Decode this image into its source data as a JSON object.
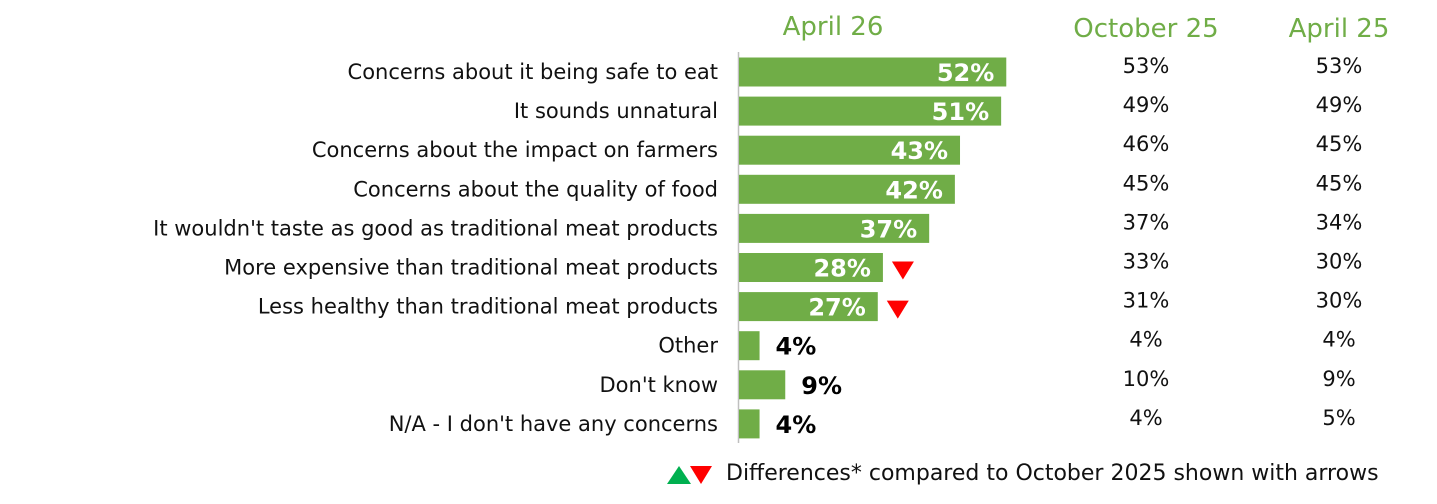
{
  "chart_data": {
    "type": "bar",
    "orientation": "horizontal",
    "categories": [
      "Concerns about it being safe to eat",
      "It sounds unnatural",
      "Concerns about the impact on farmers",
      "Concerns about the quality of food",
      "It wouldn't taste as good as traditional meat products",
      "More expensive than traditional meat products",
      "Less healthy than traditional meat products",
      "Other",
      "Don't know",
      "N/A - I don't have any concerns"
    ],
    "series": [
      {
        "name": "April 26",
        "values": [
          52,
          51,
          43,
          42,
          37,
          28,
          27,
          4,
          9,
          4
        ],
        "labels": [
          "52%",
          "51%",
          "43%",
          "42%",
          "37%",
          "28%",
          "27%",
          "4%",
          "9%",
          "4%"
        ]
      },
      {
        "name": "October 25",
        "values": [
          53,
          49,
          46,
          45,
          37,
          33,
          31,
          4,
          10,
          4
        ],
        "labels": [
          "53%",
          "49%",
          "46%",
          "45%",
          "37%",
          "33%",
          "31%",
          "4%",
          "10%",
          "4%"
        ]
      },
      {
        "name": "April 25",
        "values": [
          53,
          49,
          45,
          45,
          34,
          30,
          30,
          4,
          9,
          5
        ],
        "labels": [
          "53%",
          "49%",
          "45%",
          "45%",
          "34%",
          "30%",
          "30%",
          "4%",
          "9%",
          "5%"
        ]
      }
    ],
    "significance_vs_october_2025": [
      "none",
      "none",
      "none",
      "none",
      "none",
      "down",
      "down",
      "none",
      "none",
      "none"
    ],
    "legend_text": "Differences* compared to October 2025 shown with arrows",
    "colors": {
      "bar": "#70ad47",
      "header": "#70ad47",
      "up_arrow": "#00b050",
      "down_arrow": "#ff0000"
    }
  }
}
